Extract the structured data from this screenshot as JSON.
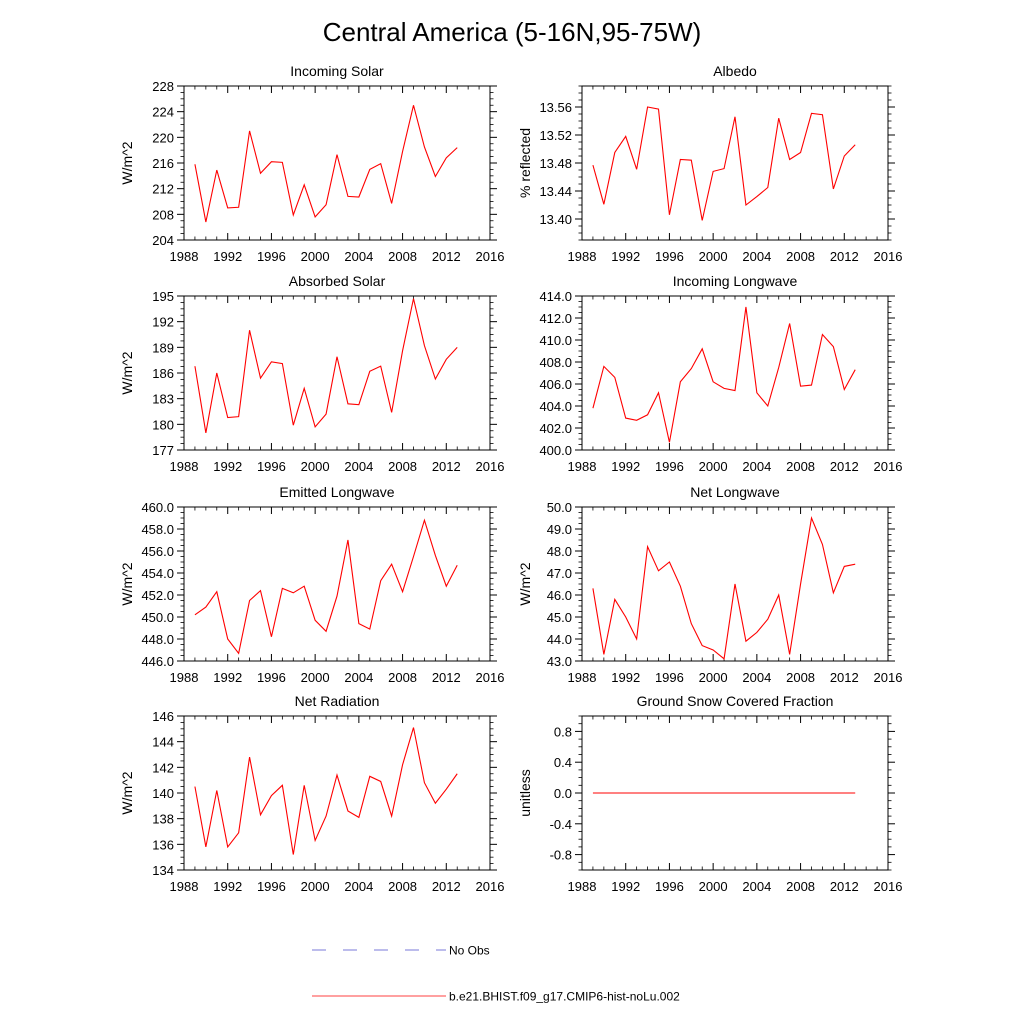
{
  "page": {
    "title": "Central America (5-16N,95-75W)"
  },
  "legend": {
    "items": [
      {
        "label": "No Obs",
        "color": "#4d4dcc",
        "style": "dashed"
      },
      {
        "label": "b.e21.BHIST.f09_g17.CMIP6-hist-noLu.002",
        "color": "#ff0000",
        "style": "solid"
      }
    ]
  },
  "chart_data": [
    {
      "type": "line",
      "title": "Incoming Solar",
      "xlabel": "",
      "ylabel": "W/m^2",
      "xlim": [
        1988,
        2016
      ],
      "ylim": [
        204,
        228
      ],
      "xticks": [
        1988,
        1992,
        1996,
        2000,
        2004,
        2008,
        2012,
        2016
      ],
      "yticks": [
        204,
        208,
        212,
        216,
        220,
        224,
        228
      ],
      "ytick_labels": [
        "204",
        "208",
        "212",
        "216",
        "220",
        "224",
        "228"
      ],
      "x": [
        1989,
        1990,
        1991,
        1992,
        1993,
        1994,
        1995,
        1996,
        1997,
        1998,
        1999,
        2000,
        2001,
        2002,
        2003,
        2004,
        2005,
        2006,
        2007,
        2008,
        2009,
        2010,
        2011,
        2012,
        2013
      ],
      "series": [
        {
          "name": "b.e21.BHIST.f09_g17.CMIP6-hist-noLu.002",
          "color": "#ff0000",
          "values": [
            215.8,
            206.8,
            214.9,
            209.0,
            209.1,
            221.0,
            214.4,
            216.2,
            216.1,
            207.9,
            212.6,
            207.6,
            209.5,
            217.3,
            210.8,
            210.7,
            215.0,
            215.9,
            209.7,
            217.8,
            225.0,
            218.5,
            213.9,
            216.8,
            218.4
          ]
        }
      ]
    },
    {
      "type": "line",
      "title": "Albedo",
      "xlabel": "",
      "ylabel": "% reflected",
      "xlim": [
        1988,
        2016
      ],
      "ylim": [
        13.37,
        13.59
      ],
      "xticks": [
        1988,
        1992,
        1996,
        2000,
        2004,
        2008,
        2012,
        2016
      ],
      "yticks": [
        13.4,
        13.44,
        13.48,
        13.52,
        13.56
      ],
      "ytick_labels": [
        "13.40",
        "13.44",
        "13.48",
        "13.52",
        "13.56"
      ],
      "x": [
        1989,
        1990,
        1991,
        1992,
        1993,
        1994,
        1995,
        1996,
        1997,
        1998,
        1999,
        2000,
        2001,
        2002,
        2003,
        2004,
        2005,
        2006,
        2007,
        2008,
        2009,
        2010,
        2011,
        2012,
        2013
      ],
      "series": [
        {
          "name": "b.e21.BHIST.f09_g17.CMIP6-hist-noLu.002",
          "color": "#ff0000",
          "values": [
            13.477,
            13.421,
            13.495,
            13.518,
            13.471,
            13.56,
            13.557,
            13.406,
            13.485,
            13.484,
            13.398,
            13.468,
            13.472,
            13.546,
            13.42,
            13.432,
            13.445,
            13.544,
            13.485,
            13.495,
            13.551,
            13.549,
            13.443,
            13.49,
            13.506
          ]
        }
      ]
    },
    {
      "type": "line",
      "title": "Absorbed Solar",
      "xlabel": "",
      "ylabel": "W/m^2",
      "xlim": [
        1988,
        2016
      ],
      "ylim": [
        177,
        195
      ],
      "xticks": [
        1988,
        1992,
        1996,
        2000,
        2004,
        2008,
        2012,
        2016
      ],
      "yticks": [
        177,
        180,
        183,
        186,
        189,
        192,
        195
      ],
      "ytick_labels": [
        "177",
        "180",
        "183",
        "186",
        "189",
        "192",
        "195"
      ],
      "x": [
        1989,
        1990,
        1991,
        1992,
        1993,
        1994,
        1995,
        1996,
        1997,
        1998,
        1999,
        2000,
        2001,
        2002,
        2003,
        2004,
        2005,
        2006,
        2007,
        2008,
        2009,
        2010,
        2011,
        2012,
        2013
      ],
      "series": [
        {
          "name": "b.e21.BHIST.f09_g17.CMIP6-hist-noLu.002",
          "color": "#ff0000",
          "values": [
            186.8,
            179.0,
            186.0,
            180.8,
            180.9,
            191.0,
            185.4,
            187.3,
            187.1,
            179.9,
            184.2,
            179.7,
            181.2,
            187.9,
            182.4,
            182.3,
            186.2,
            186.8,
            181.4,
            188.6,
            194.7,
            189.2,
            185.3,
            187.6,
            189.0
          ]
        }
      ]
    },
    {
      "type": "line",
      "title": "Incoming Longwave",
      "xlabel": "",
      "ylabel": "",
      "xlim": [
        1988,
        2016
      ],
      "ylim": [
        400.0,
        414.0
      ],
      "xticks": [
        1988,
        1992,
        1996,
        2000,
        2004,
        2008,
        2012,
        2016
      ],
      "yticks": [
        400,
        402,
        404,
        406,
        408,
        410,
        412,
        414
      ],
      "ytick_labels": [
        "400.0",
        "402.0",
        "404.0",
        "406.0",
        "408.0",
        "410.0",
        "412.0",
        "414.0"
      ],
      "x": [
        1989,
        1990,
        1991,
        1992,
        1993,
        1994,
        1995,
        1996,
        1997,
        1998,
        1999,
        2000,
        2001,
        2002,
        2003,
        2004,
        2005,
        2006,
        2007,
        2008,
        2009,
        2010,
        2011,
        2012,
        2013
      ],
      "series": [
        {
          "name": "b.e21.BHIST.f09_g17.CMIP6-hist-noLu.002",
          "color": "#ff0000",
          "values": [
            403.8,
            407.6,
            406.6,
            402.9,
            402.7,
            403.2,
            405.2,
            400.7,
            406.2,
            407.4,
            409.2,
            406.2,
            405.6,
            405.4,
            413.0,
            405.2,
            404.0,
            407.5,
            411.5,
            405.8,
            405.9,
            410.5,
            409.4,
            405.5,
            407.3
          ]
        }
      ]
    },
    {
      "type": "line",
      "title": "Emitted Longwave",
      "xlabel": "",
      "ylabel": "W/m^2",
      "xlim": [
        1988,
        2016
      ],
      "ylim": [
        446.0,
        460.0
      ],
      "xticks": [
        1988,
        1992,
        1996,
        2000,
        2004,
        2008,
        2012,
        2016
      ],
      "yticks": [
        446,
        448,
        450,
        452,
        454,
        456,
        458,
        460
      ],
      "ytick_labels": [
        "446.0",
        "448.0",
        "450.0",
        "452.0",
        "454.0",
        "456.0",
        "458.0",
        "460.0"
      ],
      "x": [
        1989,
        1990,
        1991,
        1992,
        1993,
        1994,
        1995,
        1996,
        1997,
        1998,
        1999,
        2000,
        2001,
        2002,
        2003,
        2004,
        2005,
        2006,
        2007,
        2008,
        2009,
        2010,
        2011,
        2012,
        2013
      ],
      "series": [
        {
          "name": "b.e21.BHIST.f09_g17.CMIP6-hist-noLu.002",
          "color": "#ff0000",
          "values": [
            450.2,
            450.9,
            452.3,
            448.0,
            446.7,
            451.5,
            452.4,
            448.2,
            452.6,
            452.2,
            452.8,
            449.7,
            448.7,
            451.9,
            457.0,
            449.4,
            448.9,
            453.3,
            454.8,
            452.3,
            455.5,
            458.8,
            455.6,
            452.8,
            454.7
          ]
        }
      ]
    },
    {
      "type": "line",
      "title": "Net Longwave",
      "xlabel": "",
      "ylabel": "W/m^2",
      "xlim": [
        1988,
        2016
      ],
      "ylim": [
        43.0,
        50.0
      ],
      "xticks": [
        1988,
        1992,
        1996,
        2000,
        2004,
        2008,
        2012,
        2016
      ],
      "yticks": [
        43,
        44,
        45,
        46,
        47,
        48,
        49,
        50
      ],
      "ytick_labels": [
        "43.0",
        "44.0",
        "45.0",
        "46.0",
        "47.0",
        "48.0",
        "49.0",
        "50.0"
      ],
      "x": [
        1989,
        1990,
        1991,
        1992,
        1993,
        1994,
        1995,
        1996,
        1997,
        1998,
        1999,
        2000,
        2001,
        2002,
        2003,
        2004,
        2005,
        2006,
        2007,
        2008,
        2009,
        2010,
        2011,
        2012,
        2013
      ],
      "series": [
        {
          "name": "b.e21.BHIST.f09_g17.CMIP6-hist-noLu.002",
          "color": "#ff0000",
          "values": [
            46.3,
            43.3,
            45.8,
            45.0,
            44.0,
            48.2,
            47.1,
            47.5,
            46.4,
            44.7,
            43.7,
            43.5,
            43.1,
            46.5,
            43.9,
            44.3,
            44.9,
            46.0,
            43.3,
            46.5,
            49.5,
            48.3,
            46.1,
            47.3,
            47.4
          ]
        }
      ]
    },
    {
      "type": "line",
      "title": "Net Radiation",
      "xlabel": "",
      "ylabel": "W/m^2",
      "xlim": [
        1988,
        2016
      ],
      "ylim": [
        134,
        146
      ],
      "xticks": [
        1988,
        1992,
        1996,
        2000,
        2004,
        2008,
        2012,
        2016
      ],
      "yticks": [
        134,
        136,
        138,
        140,
        142,
        144,
        146
      ],
      "ytick_labels": [
        "134",
        "136",
        "138",
        "140",
        "142",
        "144",
        "146"
      ],
      "x": [
        1989,
        1990,
        1991,
        1992,
        1993,
        1994,
        1995,
        1996,
        1997,
        1998,
        1999,
        2000,
        2001,
        2002,
        2003,
        2004,
        2005,
        2006,
        2007,
        2008,
        2009,
        2010,
        2011,
        2012,
        2013
      ],
      "series": [
        {
          "name": "b.e21.BHIST.f09_g17.CMIP6-hist-noLu.002",
          "color": "#ff0000",
          "values": [
            140.5,
            135.8,
            140.2,
            135.8,
            136.9,
            142.8,
            138.3,
            139.8,
            140.6,
            135.2,
            140.6,
            136.3,
            138.2,
            141.4,
            138.6,
            138.1,
            141.3,
            140.9,
            138.2,
            142.2,
            145.1,
            140.8,
            139.2,
            140.3,
            141.5
          ]
        }
      ]
    },
    {
      "type": "line",
      "title": "Ground Snow Covered Fraction",
      "xlabel": "",
      "ylabel": "unitless",
      "xlim": [
        1988,
        2016
      ],
      "ylim": [
        -1.0,
        1.0
      ],
      "xticks": [
        1988,
        1992,
        1996,
        2000,
        2004,
        2008,
        2012,
        2016
      ],
      "yticks": [
        -0.8,
        -0.4,
        0.0,
        0.4,
        0.8
      ],
      "ytick_labels": [
        "-0.8",
        "-0.4",
        "0.0",
        "0.4",
        "0.8"
      ],
      "x": [
        1989,
        1990,
        1991,
        1992,
        1993,
        1994,
        1995,
        1996,
        1997,
        1998,
        1999,
        2000,
        2001,
        2002,
        2003,
        2004,
        2005,
        2006,
        2007,
        2008,
        2009,
        2010,
        2011,
        2012,
        2013
      ],
      "series": [
        {
          "name": "b.e21.BHIST.f09_g17.CMIP6-hist-noLu.002",
          "color": "#ff0000",
          "values": [
            0,
            0,
            0,
            0,
            0,
            0,
            0,
            0,
            0,
            0,
            0,
            0,
            0,
            0,
            0,
            0,
            0,
            0,
            0,
            0,
            0,
            0,
            0,
            0,
            0
          ]
        }
      ]
    }
  ]
}
